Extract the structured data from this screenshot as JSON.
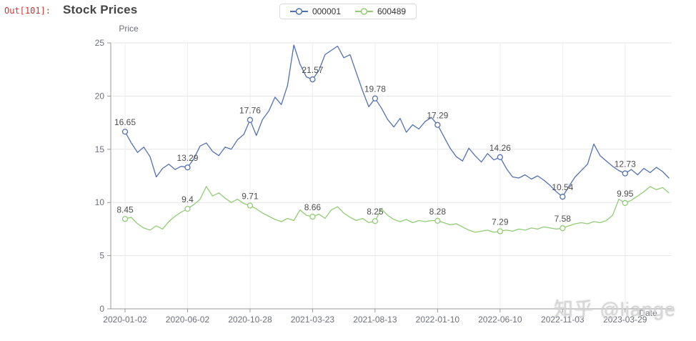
{
  "notebook": {
    "out_prompt": "Out[101]:"
  },
  "header": {
    "title": "Stock Prices"
  },
  "legend": {
    "items": [
      {
        "label": "000001",
        "color": "#5271b3"
      },
      {
        "label": "600489",
        "color": "#92cc76"
      }
    ]
  },
  "watermark": {
    "text": "知乎 @liange"
  },
  "chart_data": {
    "type": "line",
    "title": "Stock Prices",
    "xlabel": "Date",
    "ylabel": "Price",
    "ylim": [
      0,
      25
    ],
    "y_ticks": [
      0,
      5,
      10,
      15,
      20,
      25
    ],
    "x_tick_labels": [
      "2020-01-02",
      "2020-06-02",
      "2020-10-28",
      "2021-03-23",
      "2021-08-13",
      "2022-01-10",
      "2022-06-10",
      "2022-11-03",
      "2023-03-29"
    ],
    "x_tick_indices": [
      0,
      10,
      20,
      30,
      40,
      50,
      60,
      70,
      80
    ],
    "grid": true,
    "legend_position": "top",
    "labeled_values": {
      "000001": [
        16.65,
        13.29,
        17.76,
        21.57,
        19.78,
        17.29,
        14.26,
        10.54,
        12.73
      ],
      "600489": [
        8.45,
        9.4,
        9.71,
        8.66,
        8.25,
        8.28,
        7.29,
        7.58,
        9.95
      ]
    },
    "series": [
      {
        "name": "000001",
        "color": "#5271b3",
        "values": [
          16.65,
          15.6,
          14.7,
          15.2,
          14.3,
          12.4,
          13.2,
          13.6,
          13.1,
          13.4,
          13.29,
          14.1,
          15.3,
          15.6,
          14.8,
          14.4,
          15.2,
          15.0,
          15.9,
          16.4,
          17.76,
          16.3,
          17.8,
          18.6,
          19.9,
          19.2,
          21.0,
          24.8,
          23.0,
          21.8,
          21.57,
          22.4,
          23.9,
          24.3,
          24.7,
          23.6,
          23.9,
          22.2,
          20.5,
          19.0,
          19.78,
          18.9,
          17.8,
          17.1,
          17.9,
          16.6,
          17.3,
          16.9,
          17.6,
          18.0,
          17.29,
          16.2,
          15.1,
          14.3,
          13.9,
          15.1,
          14.4,
          13.8,
          14.6,
          14.0,
          14.26,
          13.2,
          12.4,
          12.3,
          12.6,
          12.2,
          12.5,
          12.1,
          11.6,
          11.0,
          10.54,
          11.5,
          12.4,
          13.0,
          13.6,
          15.5,
          14.4,
          13.9,
          13.4,
          13.0,
          12.73,
          13.1,
          12.6,
          13.2,
          12.8,
          13.3,
          12.9,
          12.3
        ]
      },
      {
        "name": "600489",
        "color": "#92cc76",
        "values": [
          8.45,
          8.6,
          8.0,
          7.6,
          7.4,
          7.8,
          7.5,
          8.2,
          8.7,
          9.1,
          9.4,
          9.8,
          10.3,
          11.5,
          10.6,
          10.9,
          10.4,
          10.0,
          10.3,
          9.9,
          9.71,
          9.4,
          9.0,
          8.7,
          8.4,
          8.2,
          8.5,
          8.3,
          9.3,
          8.8,
          8.66,
          8.9,
          8.5,
          9.3,
          9.6,
          9.0,
          8.6,
          8.3,
          8.5,
          8.1,
          8.25,
          9.4,
          8.8,
          8.4,
          8.2,
          8.4,
          8.1,
          8.3,
          8.2,
          8.3,
          8.28,
          8.1,
          7.9,
          8.0,
          7.7,
          7.4,
          7.2,
          7.3,
          7.4,
          7.2,
          7.29,
          7.4,
          7.3,
          7.5,
          7.4,
          7.6,
          7.5,
          7.7,
          7.6,
          7.5,
          7.58,
          7.8,
          8.0,
          8.1,
          8.0,
          8.2,
          8.1,
          8.3,
          8.8,
          10.3,
          9.95,
          10.2,
          10.6,
          11.0,
          11.5,
          11.2,
          11.4,
          10.9
        ]
      }
    ]
  }
}
